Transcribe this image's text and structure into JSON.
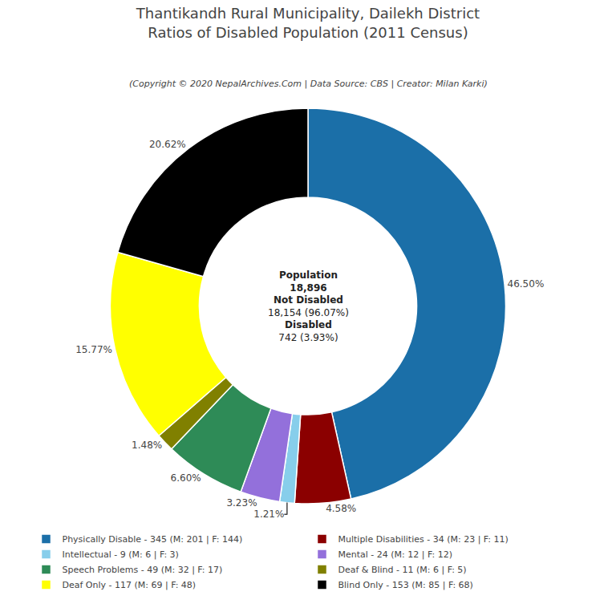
{
  "chart_data": {
    "type": "pie",
    "title": "Thantikandh Rural Municipality, Dailekh District\nRatios of Disabled Population (2011 Census)",
    "subtitle": "(Copyright © 2020 NepalArchives.Com | Data Source: CBS | Creator: Milan Karki)",
    "categories": [
      "Physically Disable - 345 (M: 201 | F: 144)",
      "Multiple Disabilities - 34 (M: 23 | F: 11)",
      "Intellectual - 9 (M: 6 | F: 3)",
      "Mental - 24 (M: 12 | F: 12)",
      "Speech Problems - 49 (M: 32 | F: 17)",
      "Deaf & Blind - 11 (M: 6 | F: 5)",
      "Deaf Only - 117 (M: 69 | F: 48)",
      "Blind Only - 153 (M: 85 | F: 68)"
    ],
    "values": [
      46.5,
      4.58,
      1.21,
      3.23,
      6.6,
      1.48,
      15.77,
      20.62
    ],
    "value_labels": [
      "46.50%",
      "4.58%",
      "1.21%",
      "3.23%",
      "6.60%",
      "1.48%",
      "15.77%",
      "20.62%"
    ],
    "colors": [
      "#1B6FA8",
      "#8B0000",
      "#87CEEB",
      "#9370DB",
      "#2E8B57",
      "#808000",
      "#FFFF00",
      "#000000"
    ],
    "annotations": [
      "Population",
      "18,896",
      "Not Disabled",
      "18,154 (96.07%)",
      "Disabled",
      "742 (3.93%)"
    ],
    "data_labels": true,
    "legend": "bottom"
  }
}
